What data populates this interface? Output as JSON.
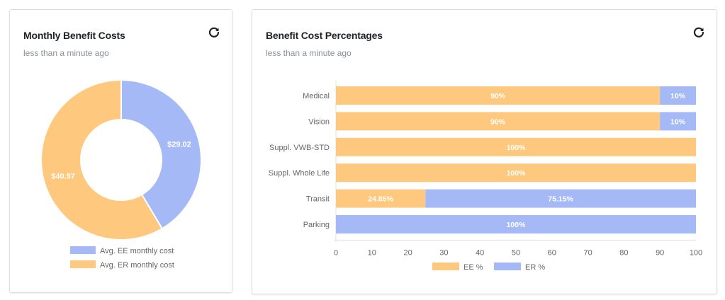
{
  "cards": [
    {
      "title": "Monthly Benefit Costs",
      "subtitle": "less than a minute ago",
      "refresh_icon": "refresh-icon"
    },
    {
      "title": "Benefit Cost Percentages",
      "subtitle": "less than a minute ago",
      "refresh_icon": "refresh-icon"
    }
  ],
  "colors": {
    "ee": "#fec97e",
    "er": "#a5b9f7",
    "label_text": "#ffffff",
    "axis_text": "#666666",
    "title_text": "#1f2328",
    "subtitle_text": "#8a8f98"
  },
  "chart_data": [
    {
      "type": "pie",
      "variant": "doughnut",
      "title": "Monthly Benefit Costs",
      "labels": [
        "Avg. EE monthly cost",
        "Avg. ER monthly cost"
      ],
      "values": [
        29.02,
        40.97
      ],
      "data_labels": [
        "$29.02",
        "$40.97"
      ],
      "legend": {
        "position": "bottom",
        "entries": [
          "Avg. EE monthly cost",
          "Avg. ER monthly cost"
        ]
      }
    },
    {
      "type": "bar",
      "orientation": "horizontal",
      "stacked": true,
      "title": "Benefit Cost Percentages",
      "categories": [
        "Medical",
        "Vision",
        "Suppl. VWB-STD",
        "Suppl. Whole Life",
        "Transit",
        "Parking"
      ],
      "series": [
        {
          "name": "EE %",
          "values": [
            90,
            90,
            100,
            100,
            24.85,
            0
          ],
          "labels": [
            "90%",
            "90%",
            "100%",
            "100%",
            "24.85%",
            ""
          ]
        },
        {
          "name": "ER %",
          "values": [
            10,
            10,
            0,
            0,
            75.15,
            100
          ],
          "labels": [
            "10%",
            "10%",
            "",
            "",
            "75.15%",
            "100%"
          ]
        }
      ],
      "xlim": [
        0,
        100
      ],
      "xticks": [
        "0",
        "10",
        "20",
        "30",
        "40",
        "50",
        "60",
        "70",
        "80",
        "90",
        "100"
      ],
      "grid": false,
      "legend": {
        "position": "bottom",
        "entries": [
          "EE %",
          "ER %"
        ]
      }
    }
  ]
}
